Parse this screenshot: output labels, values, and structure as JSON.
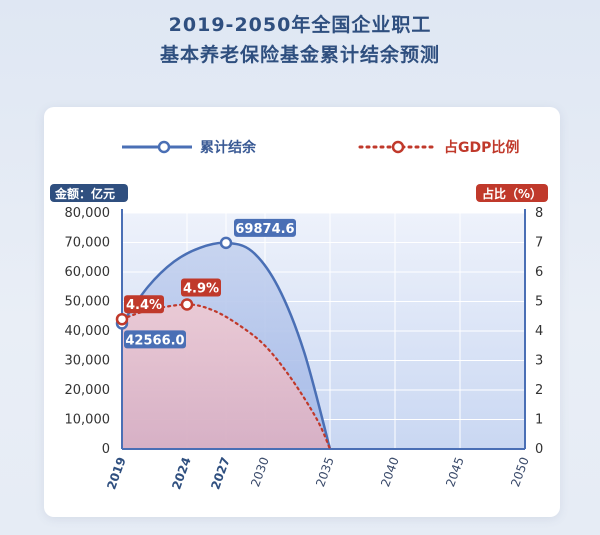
{
  "title_line1": "2019-2050年全国企业职工",
  "title_line2": "基本养老保险基金累计结余预测",
  "chart_data": {
    "type": "line",
    "legend": {
      "placement": "top",
      "entries": [
        "累计结余",
        "占GDP比例"
      ]
    },
    "left_axis": {
      "unit_label": "金额：亿元",
      "range": [
        0,
        80000
      ],
      "ticks": [
        "0",
        "10,000",
        "20,000",
        "30,000",
        "40,000",
        "50,000",
        "60,000",
        "70,000",
        "80,000"
      ]
    },
    "right_axis": {
      "unit_label": "占比（%）",
      "range": [
        0,
        8
      ],
      "ticks": [
        "0",
        "1",
        "2",
        "3",
        "4",
        "5",
        "6",
        "7",
        "8"
      ]
    },
    "x_axis": {
      "range": [
        2019,
        2050
      ],
      "ticks_bold": [
        "2019",
        "2024",
        "2027"
      ],
      "ticks": [
        "2030",
        "2035",
        "2040",
        "2045",
        "2050"
      ]
    },
    "grid": true,
    "series": [
      {
        "name": "累计结余",
        "axis": "left",
        "color": "#4a6fb5",
        "points": [
          [
            2019,
            42566.0
          ],
          [
            2021,
            55000
          ],
          [
            2023,
            63500
          ],
          [
            2025,
            68200
          ],
          [
            2027,
            69874.6
          ],
          [
            2029,
            67000
          ],
          [
            2031,
            55000
          ],
          [
            2033,
            33000
          ],
          [
            2035,
            0
          ]
        ]
      },
      {
        "name": "占GDP比例",
        "axis": "right",
        "color": "#c0392b",
        "points": [
          [
            2019,
            4.4
          ],
          [
            2021,
            4.7
          ],
          [
            2024,
            4.9
          ],
          [
            2026,
            4.7
          ],
          [
            2028,
            4.2
          ],
          [
            2030,
            3.5
          ],
          [
            2032,
            2.4
          ],
          [
            2034,
            1.0
          ],
          [
            2035,
            0
          ]
        ]
      }
    ],
    "annotations": [
      {
        "series": "累计结余",
        "x": 2027,
        "y": 69874.6,
        "text": "69874.6"
      },
      {
        "series": "累计结余",
        "x": 2019,
        "y": 42566.0,
        "text": "42566.0"
      },
      {
        "series": "占GDP比例",
        "x": 2019,
        "y": 4.4,
        "text": "4.4%"
      },
      {
        "series": "占GDP比例",
        "x": 2024,
        "y": 4.9,
        "text": "4.9%"
      }
    ]
  }
}
